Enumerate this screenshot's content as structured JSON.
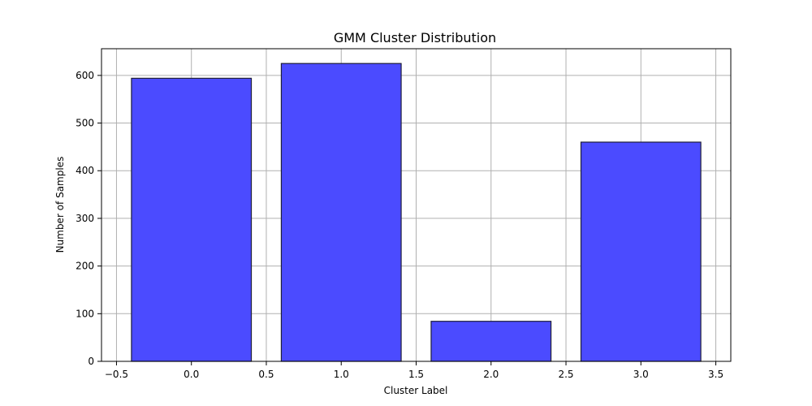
{
  "chart_data": {
    "type": "bar",
    "title": "GMM Cluster Distribution",
    "xlabel": "Cluster Label",
    "ylabel": "Number of Samples",
    "x": [
      0,
      1,
      2,
      3
    ],
    "values": [
      594,
      625,
      84,
      460
    ],
    "bar_width": 0.8,
    "xlim": [
      -0.6,
      3.6
    ],
    "ylim": [
      0,
      656
    ],
    "xticks": [
      -0.5,
      0.0,
      0.5,
      1.0,
      1.5,
      2.0,
      2.5,
      3.0,
      3.5
    ],
    "xtick_labels": [
      "−0.5",
      "0.0",
      "0.5",
      "1.0",
      "1.5",
      "2.0",
      "2.5",
      "3.0",
      "3.5"
    ],
    "yticks": [
      0,
      100,
      200,
      300,
      400,
      500,
      600
    ],
    "ytick_labels": [
      "0",
      "100",
      "200",
      "300",
      "400",
      "500",
      "600"
    ],
    "grid": true,
    "bar_color": "#4b4bff",
    "edge_color": "#1f1f3a"
  }
}
